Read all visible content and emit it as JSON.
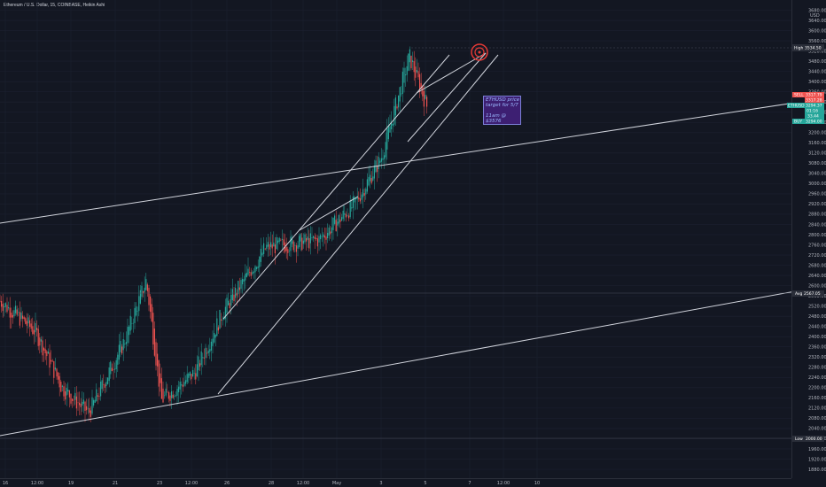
{
  "header": {
    "symbol_title": "Ethereum / U.S. Dollar, 15, COINBASE, Heikin Ashi"
  },
  "axis": {
    "currency": "USD",
    "price_ticks": [
      3680,
      3640,
      3600,
      3560,
      3520,
      3480,
      3440,
      3400,
      3360,
      3320,
      3280,
      3240,
      3200,
      3160,
      3120,
      3080,
      3040,
      3000,
      2960,
      2920,
      2880,
      2840,
      2800,
      2760,
      2720,
      2680,
      2640,
      2600,
      2560,
      2520,
      2480,
      2440,
      2400,
      2360,
      2320,
      2280,
      2240,
      2200,
      2160,
      2120,
      2080,
      2040,
      2000,
      1960,
      1920,
      1880
    ],
    "time_ticks": [
      "16",
      "12:00",
      "19",
      "21",
      "23",
      "12:00",
      "26",
      "28",
      "12:00",
      "May",
      "3",
      "5",
      "7",
      "12:00",
      "10"
    ]
  },
  "price_flags": {
    "high": {
      "label": "High",
      "value": "3534.50"
    },
    "sell": {
      "label": "SELL",
      "value": "3317.79"
    },
    "last_price": {
      "label": "3317.28"
    },
    "symbol": {
      "label": "ETHUSD",
      "value": "3294.37"
    },
    "countdown": {
      "label": "01:16"
    },
    "change": {
      "label": "33.44"
    },
    "buy": {
      "label": "BUY",
      "value": "3294.00"
    },
    "avg": {
      "label": "Avg",
      "value": "2567.05"
    },
    "low": {
      "label": "Low",
      "value": "2000.00"
    }
  },
  "note": {
    "line1": "ETHUSD price",
    "line2": "target for 5/7",
    "line3": "11am @",
    "line4": "$3576"
  },
  "colors": {
    "background": "#131722",
    "up_candle": "#26a69a",
    "down_candle": "#ef5350",
    "trendline": "#d1d4dc",
    "target_circle": "#e53935",
    "note_bg": "#3d1f72"
  },
  "chart_data": {
    "type": "candlestick",
    "style": "Heikin Ashi",
    "interval": "15",
    "exchange": "COINBASE",
    "y_axis": "USD",
    "ylim": [
      1880,
      3680
    ],
    "approx_price_path": [
      {
        "x": "16",
        "price": 2540
      },
      {
        "x": "12:00",
        "price": 2420
      },
      {
        "x": "19",
        "price": 2200
      },
      {
        "x": "19",
        "price": 2100
      },
      {
        "x": "21",
        "price": 2380
      },
      {
        "x": "21",
        "price": 2620
      },
      {
        "x": "23",
        "price": 2150
      },
      {
        "x": "12:00",
        "price": 2260
      },
      {
        "x": "26",
        "price": 2500
      },
      {
        "x": "28",
        "price": 2750
      },
      {
        "x": "12:00",
        "price": 2780
      },
      {
        "x": "May",
        "price": 2920
      },
      {
        "x": "3",
        "price": 3100
      },
      {
        "x": "3",
        "price": 3500
      },
      {
        "x": "5",
        "price": 3300
      }
    ],
    "target_price": 3576,
    "high": 3534.5,
    "low": 2000.0,
    "avg": 2567.05
  }
}
